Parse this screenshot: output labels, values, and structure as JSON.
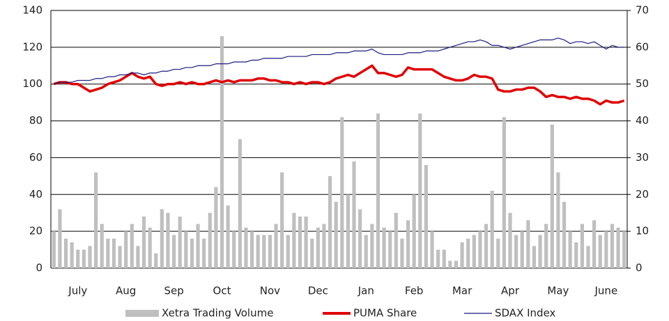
{
  "chart_data": {
    "type": "bar",
    "categories": [
      null,
      null,
      null,
      null,
      "July",
      null,
      null,
      null,
      null,
      null,
      null,
      null,
      "Aug",
      null,
      null,
      null,
      null,
      null,
      null,
      null,
      "Sep",
      null,
      null,
      null,
      null,
      null,
      null,
      null,
      "Oct",
      null,
      null,
      null,
      null,
      null,
      null,
      null,
      "Nov",
      null,
      null,
      null,
      null,
      null,
      null,
      null,
      "Dec",
      null,
      null,
      null,
      null,
      null,
      null,
      null,
      "Jan",
      null,
      null,
      null,
      null,
      null,
      null,
      null,
      "Feb",
      null,
      null,
      null,
      null,
      null,
      null,
      null,
      "Mar",
      null,
      null,
      null,
      null,
      null,
      null,
      null,
      "Apr",
      null,
      null,
      null,
      null,
      null,
      null,
      null,
      "May",
      null,
      null,
      null,
      null,
      null,
      null,
      null,
      "June",
      null,
      null,
      null
    ],
    "series": [
      {
        "name": "Xetra Trading Volume",
        "type": "bar",
        "axis": "y2",
        "color": "#bfbfbf",
        "values": [
          10,
          16,
          8,
          7,
          5,
          5,
          6,
          26,
          12,
          8,
          8,
          6,
          10,
          12,
          6,
          14,
          11,
          4,
          16,
          15,
          9,
          14,
          10,
          8,
          12,
          8,
          15,
          22,
          63,
          17,
          10,
          35,
          11,
          10,
          9,
          9,
          9,
          12,
          26,
          9,
          15,
          14,
          14,
          8,
          11,
          12,
          25,
          18,
          41,
          20,
          29,
          16,
          9,
          12,
          42,
          11,
          10,
          15,
          8,
          13,
          20,
          42,
          28,
          10,
          5,
          5,
          2,
          2,
          7,
          8,
          9,
          10,
          12,
          21,
          8,
          41,
          15,
          9,
          10,
          13,
          6,
          9,
          12,
          39,
          26,
          18,
          10,
          7,
          12,
          6,
          13,
          9,
          10,
          12,
          11,
          10
        ]
      },
      {
        "name": "PUMA Share",
        "type": "line",
        "color": "#e00000",
        "values": [
          100,
          101,
          101,
          100,
          100,
          98,
          96,
          97,
          98,
          100,
          101,
          102,
          104,
          106,
          104,
          103,
          104,
          100,
          99,
          100,
          100,
          101,
          100,
          101,
          100,
          100,
          101,
          102,
          101,
          102,
          101,
          102,
          102,
          102,
          103,
          103,
          102,
          102,
          101,
          101,
          100,
          101,
          100,
          101,
          101,
          100,
          101,
          103,
          104,
          105,
          104,
          106,
          108,
          110,
          106,
          106,
          105,
          104,
          105,
          109,
          108,
          108,
          108,
          108,
          106,
          104,
          103,
          102,
          102,
          103,
          105,
          104,
          104,
          103,
          97,
          96,
          96,
          97,
          97,
          98,
          98,
          96,
          93,
          94,
          93,
          93,
          92,
          93,
          92,
          92,
          91,
          89,
          91,
          90,
          90,
          91
        ]
      },
      {
        "name": "SDAX Index",
        "type": "line",
        "color": "#1a1a80",
        "values": [
          100,
          101,
          101,
          101,
          102,
          102,
          102,
          103,
          103,
          104,
          104,
          105,
          105,
          106,
          106,
          105,
          106,
          106,
          107,
          107,
          108,
          108,
          109,
          109,
          110,
          110,
          110,
          111,
          111,
          111,
          112,
          112,
          112,
          113,
          113,
          114,
          114,
          114,
          114,
          115,
          115,
          115,
          115,
          116,
          116,
          116,
          116,
          117,
          117,
          117,
          118,
          118,
          118,
          119,
          117,
          116,
          116,
          116,
          116,
          117,
          117,
          117,
          118,
          118,
          118,
          119,
          120,
          121,
          122,
          123,
          123,
          124,
          123,
          121,
          121,
          120,
          119,
          120,
          121,
          122,
          123,
          124,
          124,
          124,
          125,
          124,
          122,
          123,
          123,
          122,
          123,
          121,
          119,
          121,
          120,
          120
        ]
      }
    ],
    "ylim": [
      0,
      140
    ],
    "yticks": [
      0,
      20,
      40,
      60,
      80,
      100,
      120,
      140
    ],
    "y2lim": [
      0,
      70
    ],
    "y2ticks": [
      0,
      10,
      20,
      30,
      40,
      50,
      60,
      70
    ],
    "grid": true,
    "legend": "bottom"
  }
}
